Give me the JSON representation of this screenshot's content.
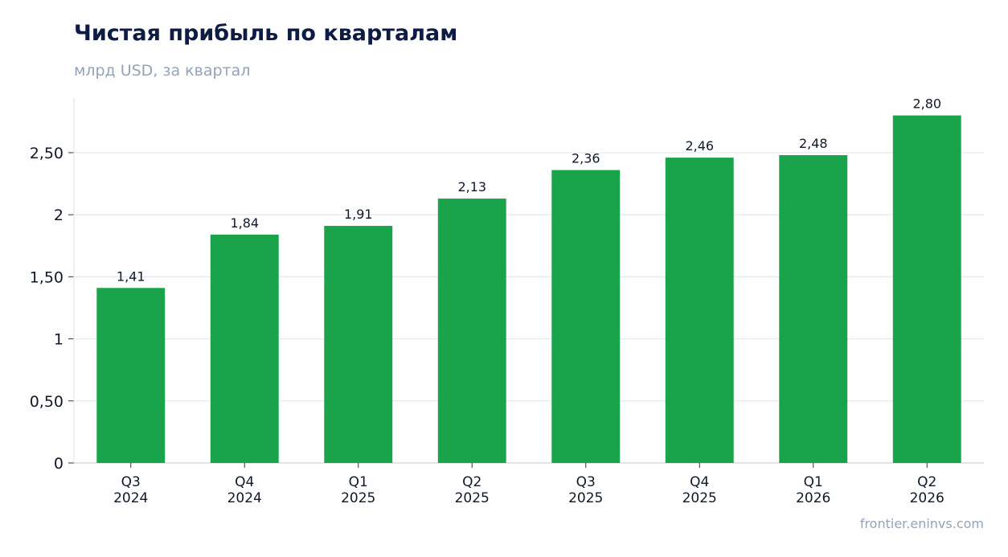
{
  "header": {
    "title": "Чистая прибыль по кварталам",
    "subtitle": "млрд USD, за квартал"
  },
  "footer": {
    "source": "frontier.eninvs.com"
  },
  "chart_data": {
    "type": "bar",
    "title": "Чистая прибыль по кварталам",
    "subtitle": "млрд USD, за квартал",
    "categories": [
      [
        "Q3",
        "2024"
      ],
      [
        "Q4",
        "2024"
      ],
      [
        "Q1",
        "2025"
      ],
      [
        "Q2",
        "2025"
      ],
      [
        "Q3",
        "2025"
      ],
      [
        "Q4",
        "2025"
      ],
      [
        "Q1",
        "2026"
      ],
      [
        "Q2",
        "2026"
      ]
    ],
    "values": [
      1.41,
      1.84,
      1.91,
      2.13,
      2.36,
      2.46,
      2.48,
      2.8
    ],
    "value_labels": [
      "1,41",
      "1,84",
      "1,91",
      "2,13",
      "2,36",
      "2,46",
      "2,48",
      "2,80"
    ],
    "yticks": [
      0,
      0.5,
      1,
      1.5,
      2,
      2.5
    ],
    "ytick_labels": [
      "0",
      "0,50",
      "1",
      "1,50",
      "2",
      "2,50"
    ],
    "ylim": [
      0,
      2.94
    ],
    "xlabel": "",
    "ylabel": "",
    "grid": true,
    "colors": {
      "bar": "#19a34a",
      "grid": "#e2e8f0",
      "axis": "#cbd5e1",
      "text": "#111827"
    }
  }
}
